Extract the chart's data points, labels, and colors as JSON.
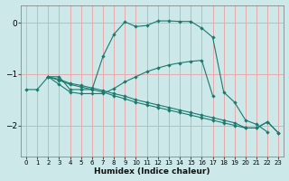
{
  "xlabel": "Humidex (Indice chaleur)",
  "bg_color": "#cce8e8",
  "grid_color": "#e8aaaa",
  "line_color": "#1a7a6e",
  "xlim": [
    -0.5,
    23.5
  ],
  "ylim": [
    -2.6,
    0.35
  ],
  "yticks": [
    0,
    -1,
    -2
  ],
  "xticks": [
    0,
    1,
    2,
    3,
    4,
    5,
    6,
    7,
    8,
    9,
    10,
    11,
    12,
    13,
    14,
    15,
    16,
    17,
    18,
    19,
    20,
    21,
    22,
    23
  ],
  "curve1_x": [
    0,
    1,
    2,
    3,
    4,
    5,
    6,
    7,
    8,
    9,
    10,
    11,
    12,
    13,
    14,
    15,
    16,
    17,
    18,
    19,
    20,
    21,
    22
  ],
  "curve1_y": [
    -1.3,
    -1.3,
    -1.05,
    -1.05,
    -1.3,
    -1.3,
    -1.3,
    -0.65,
    -0.22,
    0.02,
    -0.07,
    -0.05,
    0.04,
    0.04,
    0.03,
    0.03,
    -0.1,
    -0.28,
    -1.35,
    -1.55,
    -1.9,
    -1.98,
    -2.13
  ],
  "curve2_x": [
    2,
    3,
    4,
    5,
    6,
    7,
    8,
    9,
    10,
    11,
    12,
    13,
    14,
    15,
    16,
    17
  ],
  "curve2_y": [
    -1.05,
    -1.2,
    -1.35,
    -1.38,
    -1.38,
    -1.38,
    -1.28,
    -1.15,
    -1.05,
    -0.95,
    -0.88,
    -0.82,
    -0.78,
    -0.75,
    -0.73,
    -1.42
  ],
  "curve3_x": [
    2,
    3,
    4,
    5,
    6,
    7,
    8,
    9,
    10,
    11,
    12,
    13,
    14,
    15,
    16,
    17,
    18,
    19,
    20,
    21,
    22,
    23
  ],
  "curve3_y": [
    -1.05,
    -1.12,
    -1.2,
    -1.25,
    -1.3,
    -1.35,
    -1.42,
    -1.48,
    -1.55,
    -1.6,
    -1.65,
    -1.7,
    -1.75,
    -1.8,
    -1.85,
    -1.9,
    -1.95,
    -2.0,
    -2.05,
    -2.05,
    -1.93,
    -2.15
  ],
  "curve4_x": [
    2,
    3,
    4,
    5,
    6,
    7,
    8,
    9,
    10,
    11,
    12,
    13,
    14,
    15,
    16,
    17,
    18,
    19,
    20,
    21,
    22,
    23
  ],
  "curve4_y": [
    -1.05,
    -1.1,
    -1.18,
    -1.22,
    -1.27,
    -1.32,
    -1.38,
    -1.43,
    -1.5,
    -1.55,
    -1.6,
    -1.65,
    -1.7,
    -1.75,
    -1.8,
    -1.85,
    -1.9,
    -1.95,
    -2.05,
    -2.05,
    -1.93,
    -2.15
  ]
}
